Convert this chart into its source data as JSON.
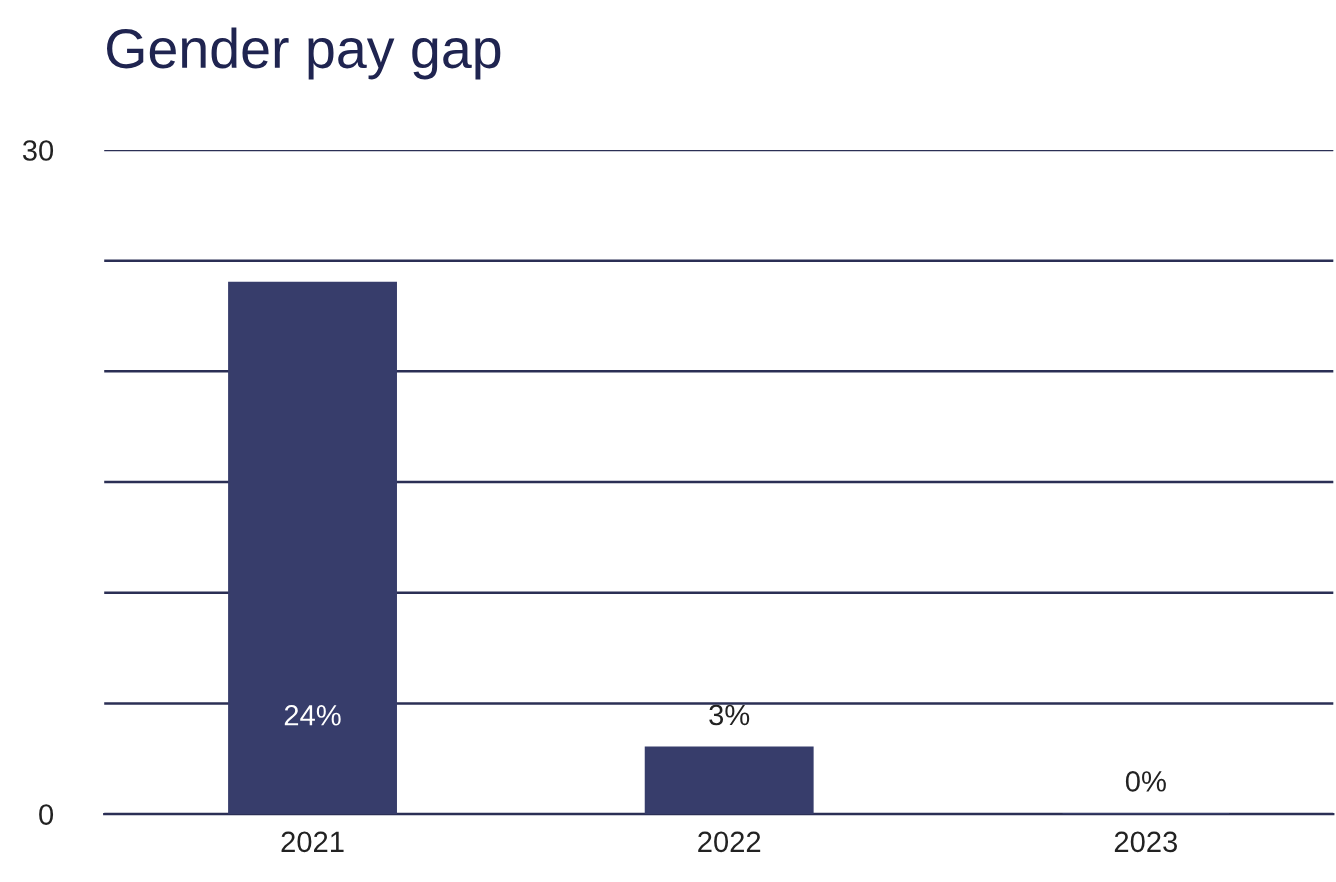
{
  "chart_data": {
    "type": "bar",
    "title": "Gender pay gap",
    "categories": [
      "2021",
      "2022",
      "2023"
    ],
    "values": [
      24,
      3,
      0
    ],
    "value_labels": [
      "24%",
      "3%",
      "0%"
    ],
    "color": "#373d6b",
    "ylim": [
      0,
      30
    ],
    "yticks": [
      0,
      {
        "value": 5,
        "label": null
      },
      {
        "value": 10,
        "label": null
      },
      {
        "value": 15,
        "label": null
      },
      {
        "value": 20,
        "label": null
      },
      {
        "value": 25,
        "label": null
      },
      30
    ],
    "grid": "y"
  }
}
